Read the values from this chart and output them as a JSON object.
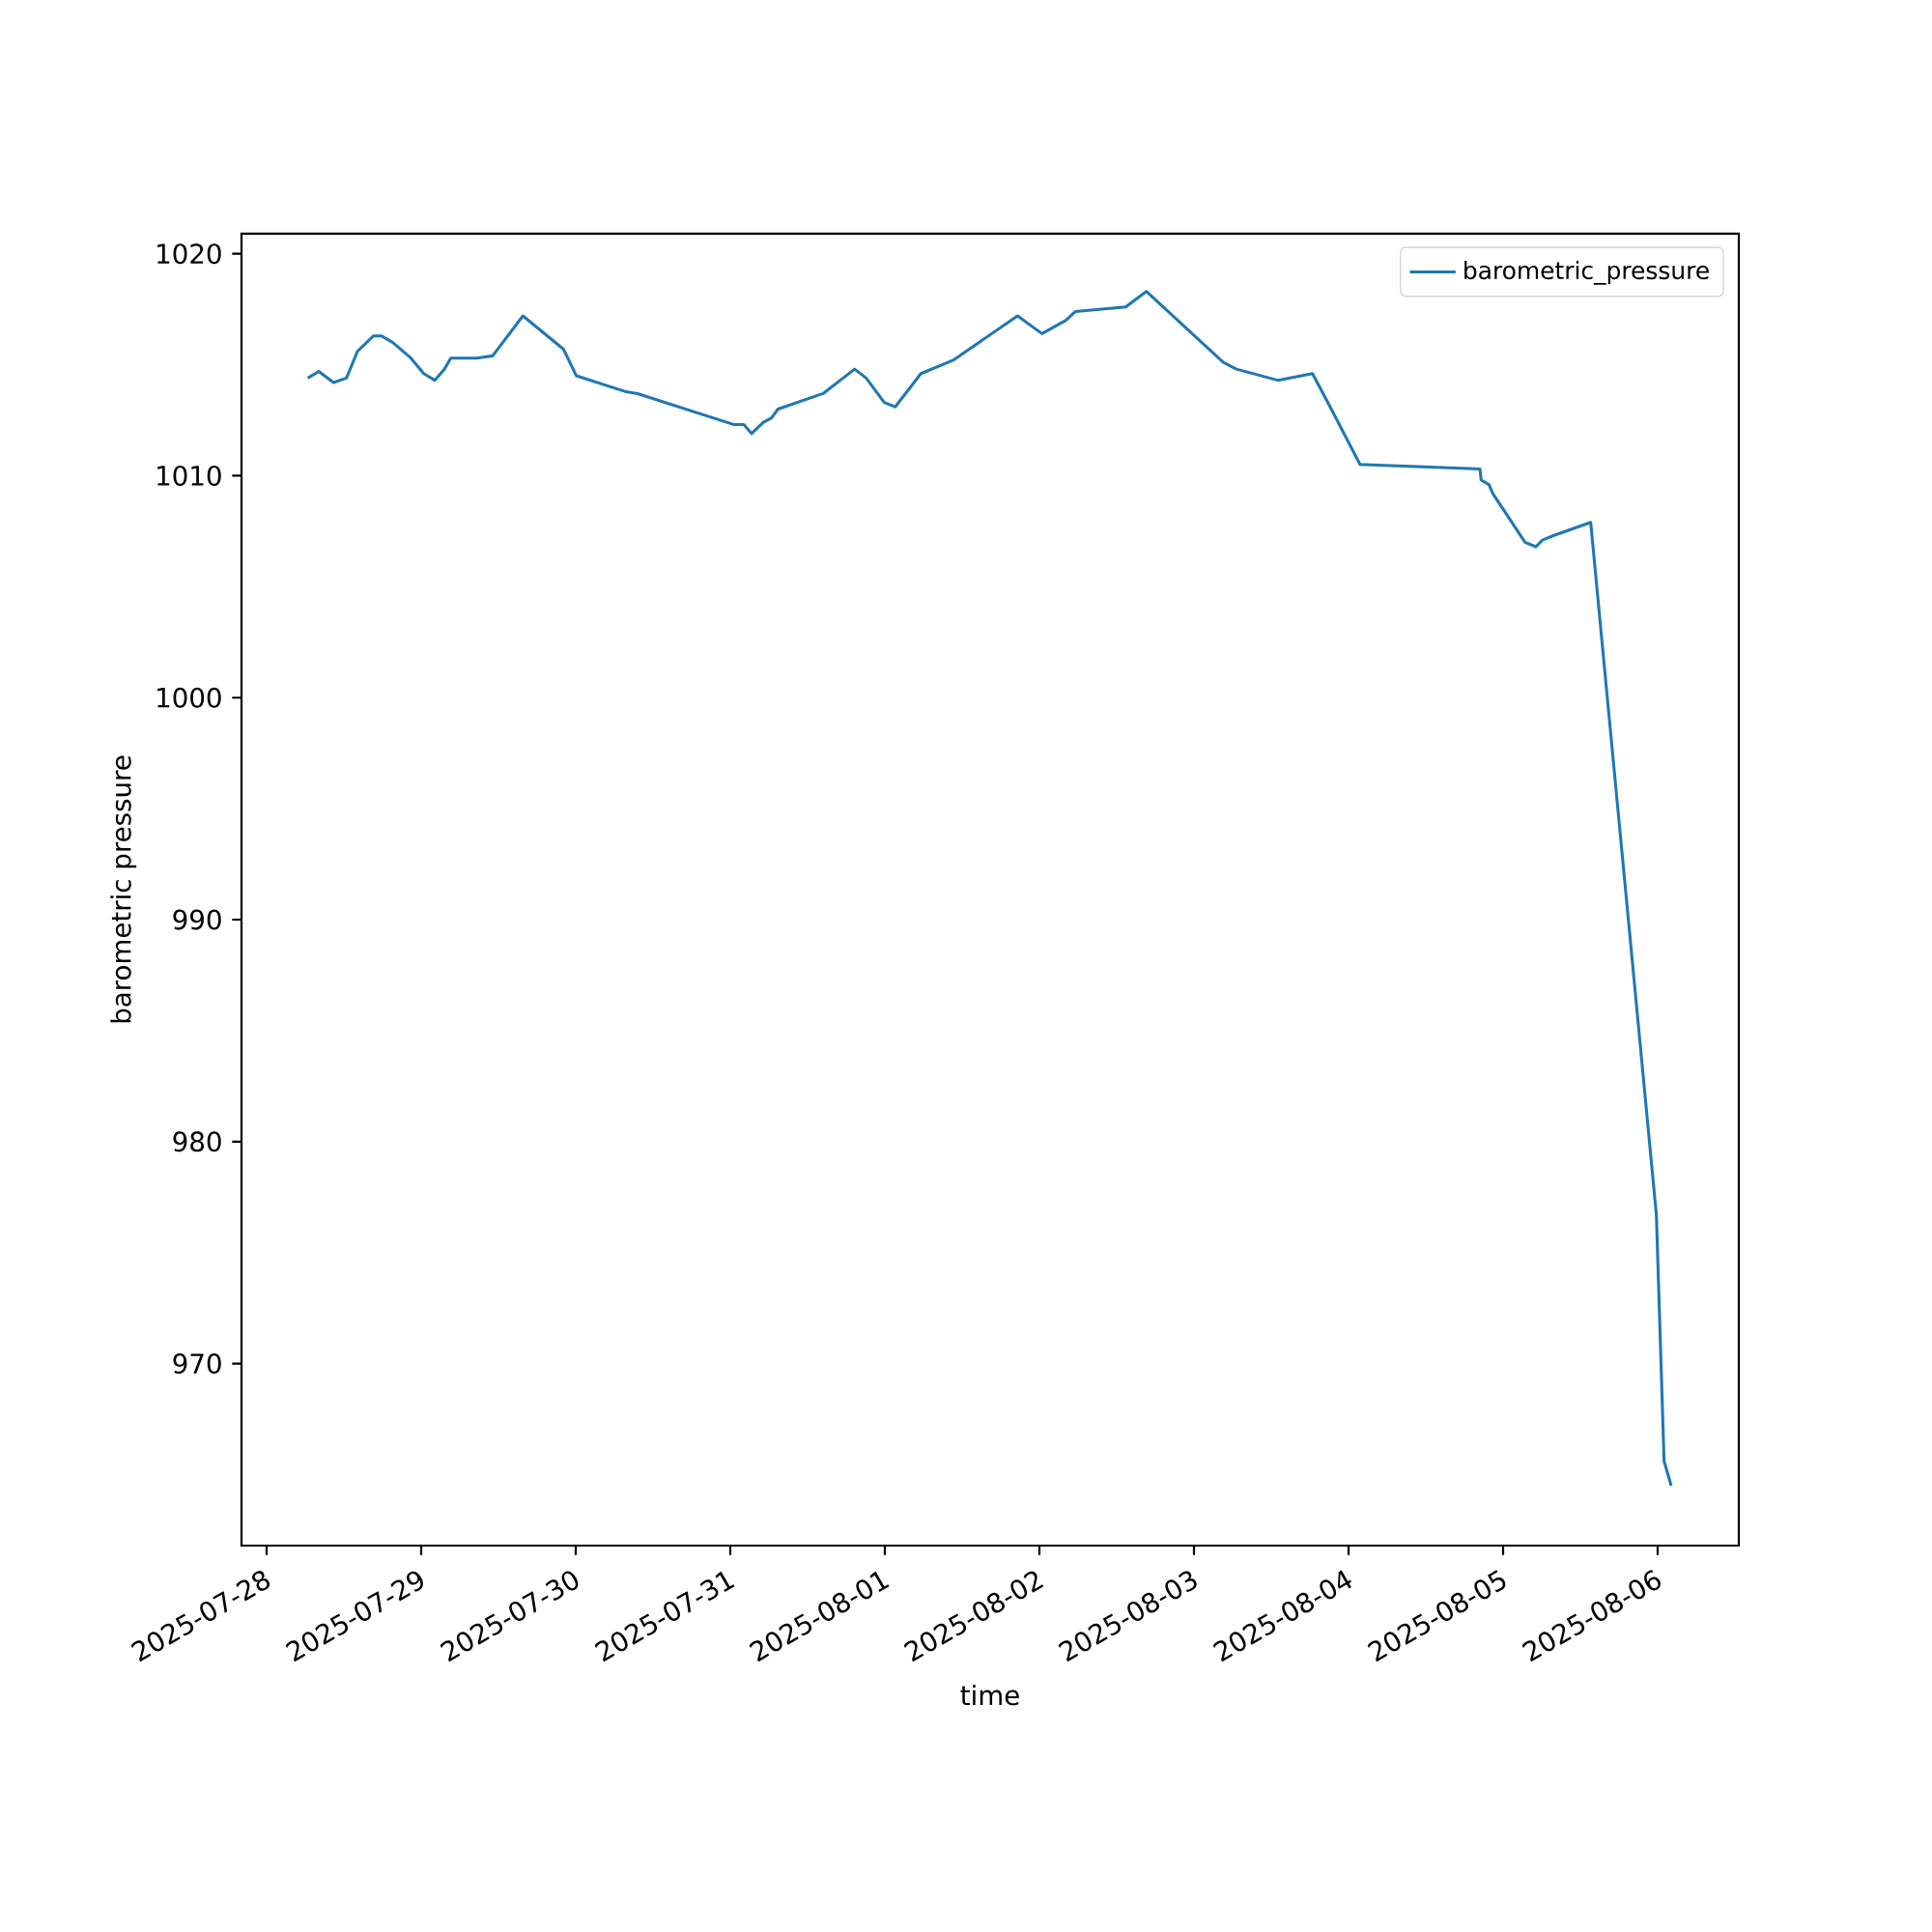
{
  "chart_data": {
    "type": "line",
    "xlabel": "time",
    "ylabel": "barometric pressure",
    "x": [
      "2025-07-28T06:24",
      "2025-07-28T08:06",
      "2025-07-28T10:24",
      "2025-07-28T12:24",
      "2025-07-28T14:06",
      "2025-07-28T16:36",
      "2025-07-28T17:48",
      "2025-07-28T19:36",
      "2025-07-28T22:24",
      "2025-07-29T00:24",
      "2025-07-29T02:06",
      "2025-07-29T03:36",
      "2025-07-29T04:36",
      "2025-07-29T08:36",
      "2025-07-29T11:06",
      "2025-07-29T15:48",
      "2025-07-29T22:06",
      "2025-07-30T00:06",
      "2025-07-30T07:36",
      "2025-07-30T09:36",
      "2025-07-31T00:36",
      "2025-07-31T02:06",
      "2025-07-31T03:18",
      "2025-07-31T05:06",
      "2025-07-31T06:24",
      "2025-07-31T07:24",
      "2025-07-31T14:24",
      "2025-07-31T19:18",
      "2025-07-31T21:06",
      "2025-07-31T23:54",
      "2025-08-01T01:36",
      "2025-08-01T05:36",
      "2025-08-01T10:36",
      "2025-08-01T20:36",
      "2025-08-02T00:24",
      "2025-08-02T04:06",
      "2025-08-02T05:36",
      "2025-08-02T13:24",
      "2025-08-02T16:36",
      "2025-08-03T04:36",
      "2025-08-03T06:36",
      "2025-08-03T13:00",
      "2025-08-03T18:24",
      "2025-08-03T20:36",
      "2025-08-04T01:48",
      "2025-08-04T02:36",
      "2025-08-04T11:36",
      "2025-08-04T20:24",
      "2025-08-04T20:36",
      "2025-08-04T21:48",
      "2025-08-04T22:24",
      "2025-08-05T03:24",
      "2025-08-05T05:06",
      "2025-08-05T06:06",
      "2025-08-05T07:48",
      "2025-08-05T13:36",
      "2025-08-05T23:48",
      "2025-08-06T01:00",
      "2025-08-06T02:06"
    ],
    "series": [
      {
        "name": "barometric_pressure",
        "color": "#1f77b4",
        "values": [
          1014.4,
          1014.7,
          1014.2,
          1014.4,
          1015.6,
          1016.3,
          1016.3,
          1016.0,
          1015.3,
          1014.6,
          1014.3,
          1014.8,
          1015.3,
          1015.3,
          1015.4,
          1017.2,
          1015.7,
          1014.5,
          1013.8,
          1013.7,
          1012.3,
          1012.3,
          1011.9,
          1012.4,
          1012.6,
          1013.0,
          1013.7,
          1014.8,
          1014.4,
          1013.3,
          1013.1,
          1014.6,
          1015.2,
          1017.2,
          1016.4,
          1017.0,
          1017.4,
          1017.6,
          1018.3,
          1015.1,
          1014.8,
          1014.3,
          1014.6,
          1013.4,
          1010.5,
          1010.5,
          1010.4,
          1010.3,
          1009.8,
          1009.6,
          1009.2,
          1007.0,
          1006.8,
          1007.1,
          1007.3,
          1007.9,
          976.7,
          965.6,
          964.5
        ]
      }
    ],
    "xlim": [
      "2025-07-27T20:06",
      "2025-08-06T12:36"
    ],
    "xticks": [
      "2025-07-28",
      "2025-07-29",
      "2025-07-30",
      "2025-07-31",
      "2025-08-01",
      "2025-08-02",
      "2025-08-03",
      "2025-08-04",
      "2025-08-05",
      "2025-08-06"
    ],
    "ylim": [
      961.8,
      1020.9
    ],
    "yticks": [
      970,
      980,
      990,
      1000,
      1010,
      1020
    ],
    "legend": "top right",
    "grid": false,
    "marker": "none",
    "line_style": "solid"
  }
}
